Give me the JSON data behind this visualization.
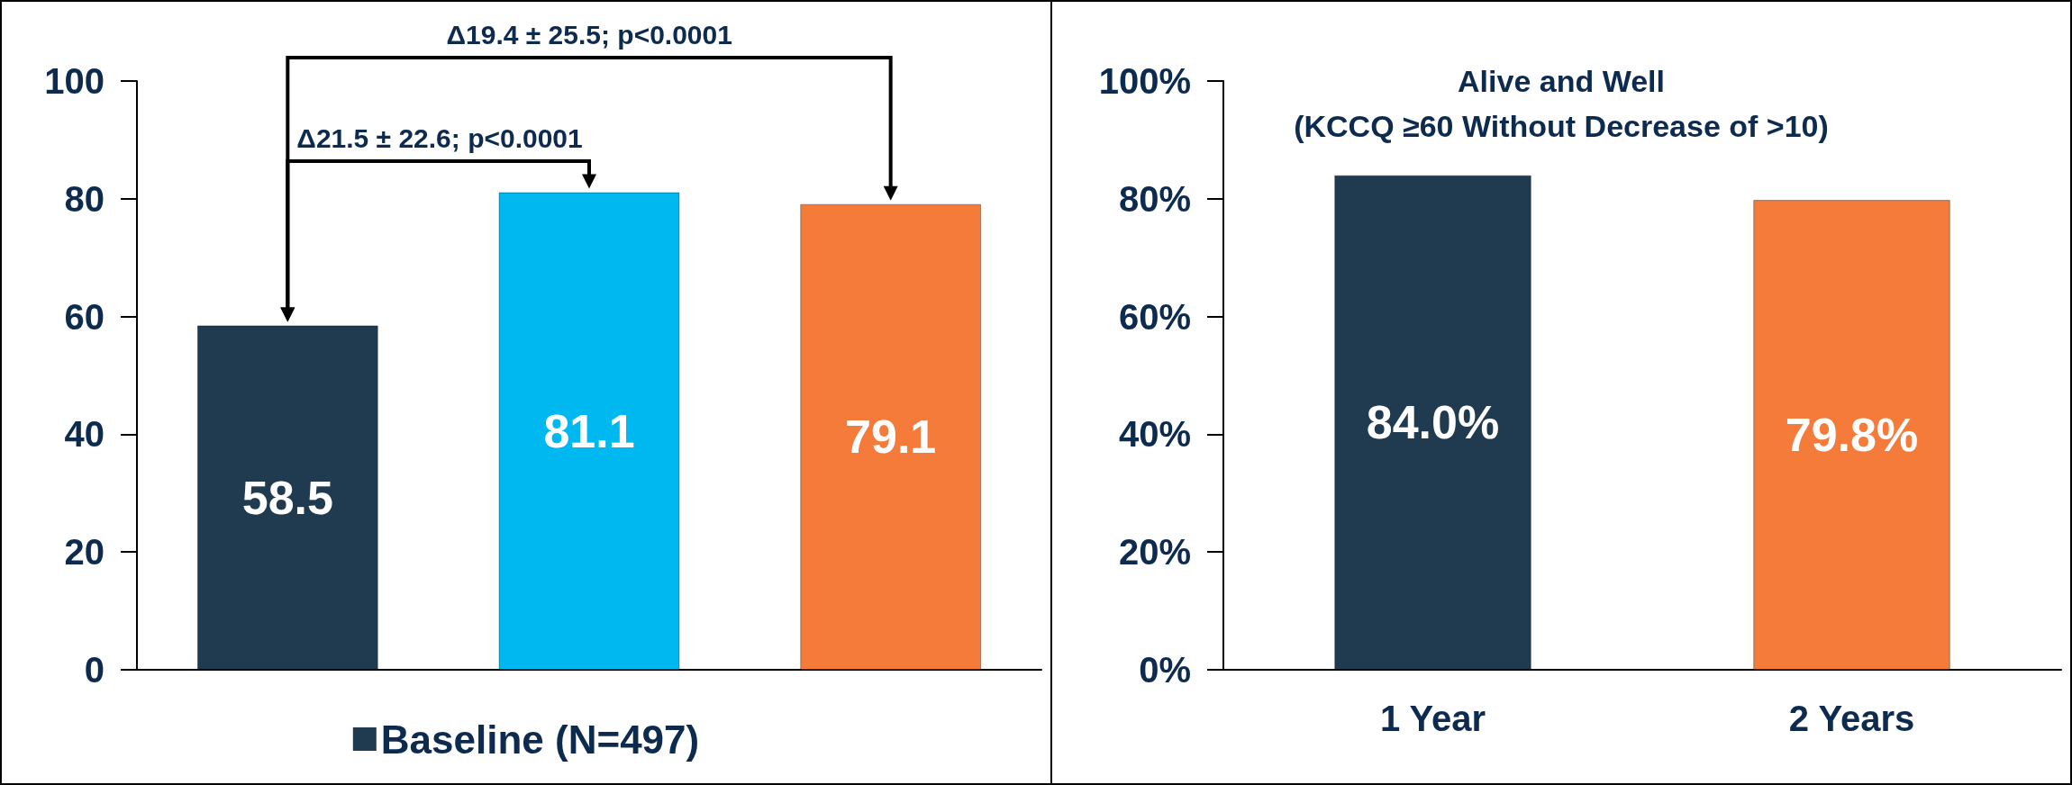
{
  "chart_data": [
    {
      "type": "bar",
      "categories": [
        null,
        null,
        null
      ],
      "series": [
        {
          "name": "Baseline (N=497)",
          "color": "#203a50",
          "values": [
            58.5,
            null,
            null
          ]
        },
        {
          "color": "#00b8f0",
          "values": [
            null,
            81.1,
            null
          ]
        },
        {
          "color": "#f47b3a",
          "values": [
            null,
            null,
            79.1
          ]
        }
      ],
      "ylim": [
        0,
        100
      ],
      "yticks": [
        0,
        20,
        40,
        60,
        80,
        100
      ],
      "grid": false,
      "legend": "bottom",
      "data_labels": true,
      "stacked": true,
      "annotations": [
        "Δ19.4 ± 25.5; p<0.0001",
        "Δ21.5 ± 22.6; p<0.0001"
      ]
    },
    {
      "type": "bar",
      "title": "Alive and Well",
      "subtitle": "(KCCQ ≥60 Without Decrease of >10)",
      "categories": [
        "1 Year",
        "2 Years"
      ],
      "values": [
        84.0,
        79.8
      ],
      "colors": [
        "#203a50",
        "#f47b3a"
      ],
      "ylim": [
        0,
        100
      ],
      "yticks": [
        {
          "value": 0,
          "label": "0%"
        },
        {
          "value": 20,
          "label": "20%"
        },
        {
          "value": 40,
          "label": "40%"
        },
        {
          "value": 60,
          "label": "60%"
        },
        {
          "value": 80,
          "label": "80%"
        },
        {
          "value": 100,
          "label": "100%"
        }
      ],
      "grid": false,
      "legend": false,
      "value_labels": [
        "84.0%",
        "79.8%"
      ]
    }
  ]
}
